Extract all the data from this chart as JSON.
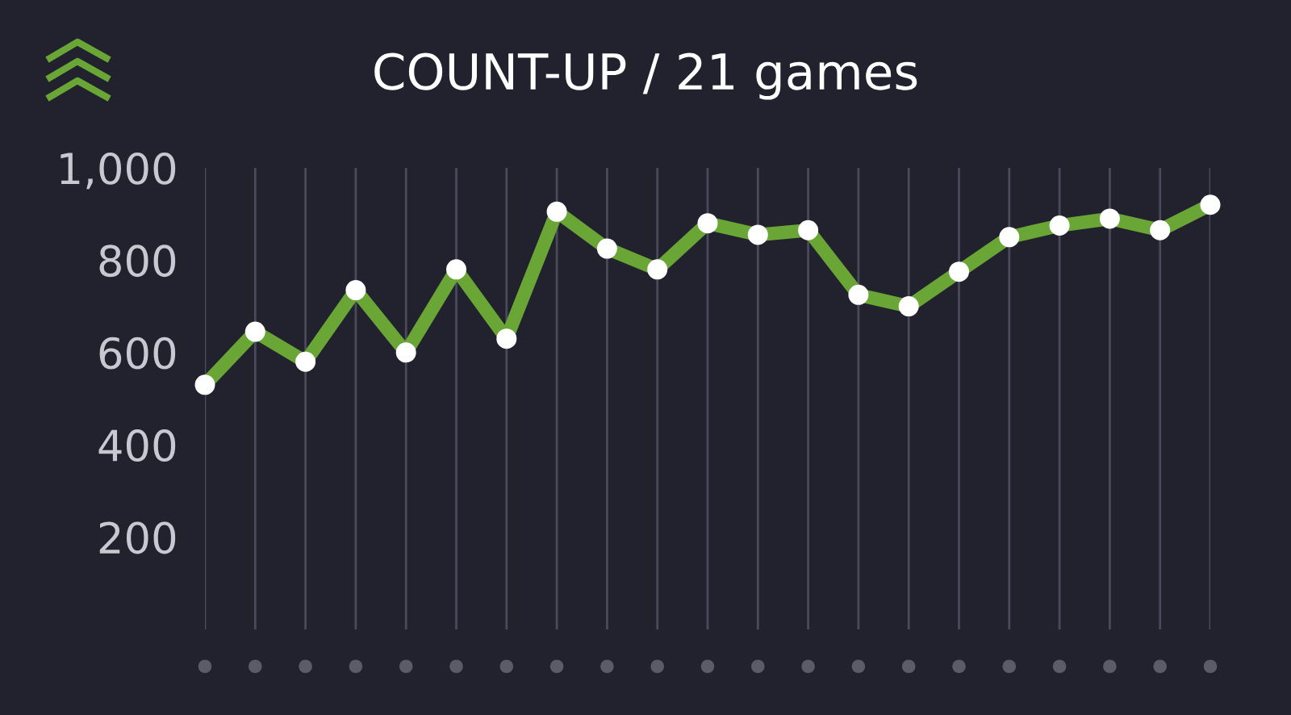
{
  "chart_data": {
    "type": "line",
    "title": "COUNT-UP / 21 games",
    "categories": [
      null,
      null,
      null,
      null,
      null,
      null,
      null,
      null,
      null,
      null,
      null,
      null,
      null,
      null,
      null,
      null,
      null,
      null,
      null,
      null,
      null
    ],
    "series": [
      {
        "color": "#6aa636",
        "values": [
          530,
          645,
          580,
          735,
          600,
          780,
          630,
          905,
          825,
          780,
          880,
          855,
          865,
          725,
          700,
          775,
          850,
          875,
          890,
          865,
          920
        ]
      }
    ],
    "ylim": [
      0,
      1000
    ],
    "yticks": [
      200,
      400,
      600,
      800,
      {
        "value": 1000,
        "label": "1,000"
      }
    ],
    "grid": "x",
    "marker": "circle",
    "line_style": "solid"
  }
}
